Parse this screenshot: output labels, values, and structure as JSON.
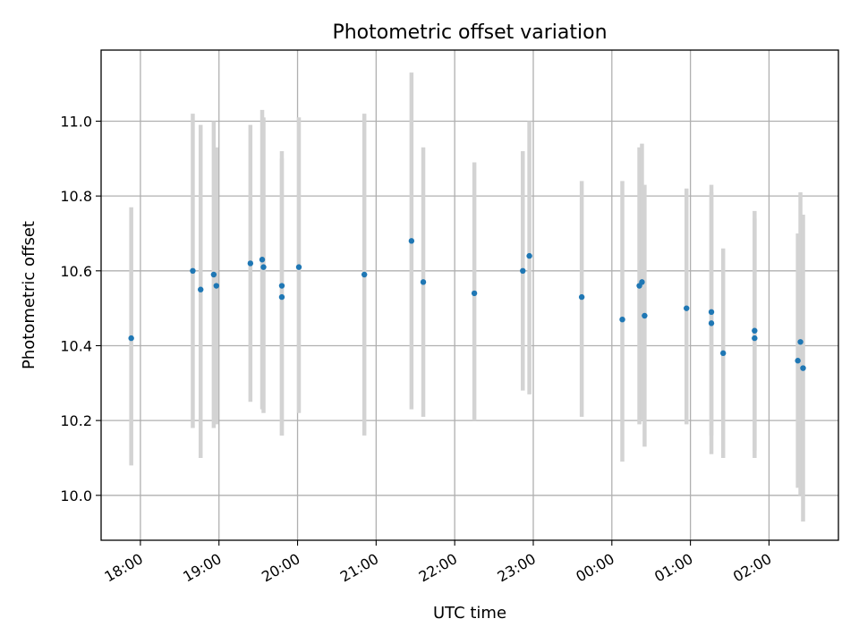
{
  "chart_data": {
    "type": "scatter",
    "title": "Photometric offset variation",
    "xlabel": "UTC time",
    "ylabel": "Photometric offset",
    "grid": true,
    "colors": {
      "point": "#1f77b4",
      "errorbar": "#d3d3d3"
    },
    "xlim": [
      "2000-01-01T17:30",
      "2000-01-02T02:53"
    ],
    "ylim": [
      9.88,
      11.19
    ],
    "x_ticks": [
      {
        "t": "2000-01-01T18:00",
        "label": "18:00"
      },
      {
        "t": "2000-01-01T19:00",
        "label": "19:00"
      },
      {
        "t": "2000-01-01T20:00",
        "label": "20:00"
      },
      {
        "t": "2000-01-01T21:00",
        "label": "21:00"
      },
      {
        "t": "2000-01-01T22:00",
        "label": "22:00"
      },
      {
        "t": "2000-01-01T23:00",
        "label": "23:00"
      },
      {
        "t": "2000-01-02T00:00",
        "label": "00:00"
      },
      {
        "t": "2000-01-02T01:00",
        "label": "01:00"
      },
      {
        "t": "2000-01-02T02:00",
        "label": "02:00"
      }
    ],
    "y_ticks": [
      {
        "v": 10.0,
        "label": "10.0"
      },
      {
        "v": 10.2,
        "label": "10.2"
      },
      {
        "v": 10.4,
        "label": "10.4"
      },
      {
        "v": 10.6,
        "label": "10.6"
      },
      {
        "v": 10.8,
        "label": "10.8"
      },
      {
        "v": 11.0,
        "label": "11.0"
      }
    ],
    "points": [
      {
        "t": "2000-01-01T17:53",
        "y": 10.42,
        "lo": 10.08,
        "hi": 10.77
      },
      {
        "t": "2000-01-01T18:40",
        "y": 10.6,
        "lo": 10.18,
        "hi": 11.02
      },
      {
        "t": "2000-01-01T18:46",
        "y": 10.55,
        "lo": 10.1,
        "hi": 10.99
      },
      {
        "t": "2000-01-01T18:56",
        "y": 10.59,
        "lo": 10.18,
        "hi": 11.0
      },
      {
        "t": "2000-01-01T18:58",
        "y": 10.56,
        "lo": 10.19,
        "hi": 10.93
      },
      {
        "t": "2000-01-01T19:24",
        "y": 10.62,
        "lo": 10.25,
        "hi": 10.99
      },
      {
        "t": "2000-01-01T19:33",
        "y": 10.63,
        "lo": 10.23,
        "hi": 11.03
      },
      {
        "t": "2000-01-01T19:34",
        "y": 10.61,
        "lo": 10.22,
        "hi": 11.01
      },
      {
        "t": "2000-01-01T19:48",
        "y": 10.56,
        "lo": 10.16,
        "hi": 10.92
      },
      {
        "t": "2000-01-01T19:48",
        "y": 10.53,
        "lo": 10.16,
        "hi": 10.9
      },
      {
        "t": "2000-01-01T20:01",
        "y": 10.61,
        "lo": 10.22,
        "hi": 11.01
      },
      {
        "t": "2000-01-01T20:51",
        "y": 10.59,
        "lo": 10.16,
        "hi": 11.02
      },
      {
        "t": "2000-01-01T21:27",
        "y": 10.68,
        "lo": 10.23,
        "hi": 11.13
      },
      {
        "t": "2000-01-01T21:36",
        "y": 10.57,
        "lo": 10.21,
        "hi": 10.93
      },
      {
        "t": "2000-01-01T22:15",
        "y": 10.54,
        "lo": 10.2,
        "hi": 10.89
      },
      {
        "t": "2000-01-01T22:52",
        "y": 10.6,
        "lo": 10.28,
        "hi": 10.92
      },
      {
        "t": "2000-01-01T22:57",
        "y": 10.64,
        "lo": 10.27,
        "hi": 11.0
      },
      {
        "t": "2000-01-01T23:37",
        "y": 10.53,
        "lo": 10.21,
        "hi": 10.84
      },
      {
        "t": "2000-01-02T00:08",
        "y": 10.47,
        "lo": 10.09,
        "hi": 10.84
      },
      {
        "t": "2000-01-02T00:21",
        "y": 10.56,
        "lo": 10.19,
        "hi": 10.93
      },
      {
        "t": "2000-01-02T00:23",
        "y": 10.57,
        "lo": 10.2,
        "hi": 10.94
      },
      {
        "t": "2000-01-02T00:25",
        "y": 10.48,
        "lo": 10.13,
        "hi": 10.83
      },
      {
        "t": "2000-01-02T00:57",
        "y": 10.5,
        "lo": 10.19,
        "hi": 10.82
      },
      {
        "t": "2000-01-02T01:16",
        "y": 10.46,
        "lo": 10.16,
        "hi": 10.81
      },
      {
        "t": "2000-01-02T01:16",
        "y": 10.49,
        "lo": 10.11,
        "hi": 10.83
      },
      {
        "t": "2000-01-02T01:25",
        "y": 10.38,
        "lo": 10.1,
        "hi": 10.66
      },
      {
        "t": "2000-01-02T01:49",
        "y": 10.44,
        "lo": 10.12,
        "hi": 10.76
      },
      {
        "t": "2000-01-02T01:49",
        "y": 10.42,
        "lo": 10.1,
        "hi": 10.74
      },
      {
        "t": "2000-01-02T02:22",
        "y": 10.36,
        "lo": 10.02,
        "hi": 10.7
      },
      {
        "t": "2000-01-02T02:24",
        "y": 10.41,
        "lo": 10.0,
        "hi": 10.81
      },
      {
        "t": "2000-01-02T02:26",
        "y": 10.34,
        "lo": 9.93,
        "hi": 10.75
      }
    ]
  }
}
